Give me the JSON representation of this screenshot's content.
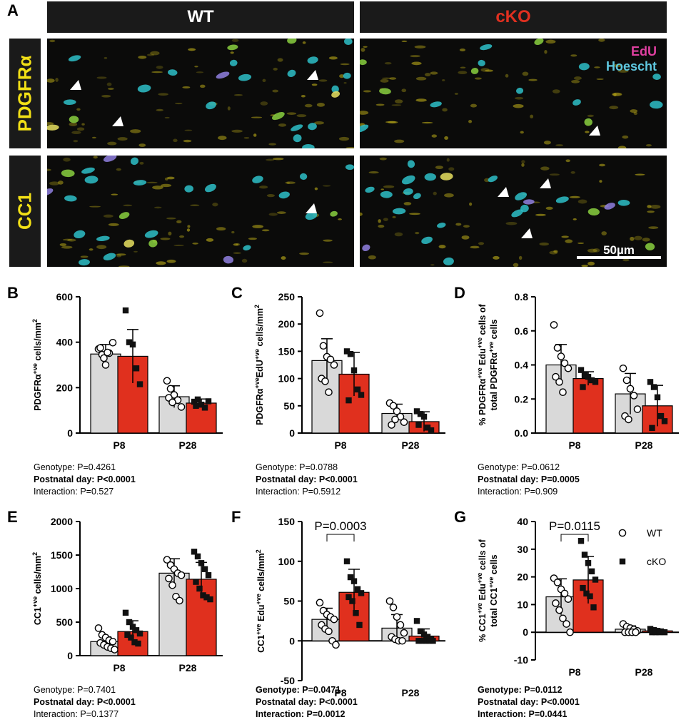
{
  "panel_a": {
    "letter": "A",
    "col_headers": [
      "WT",
      "cKO"
    ],
    "row_labels": [
      "PDGFRα",
      "CC1"
    ],
    "legend": {
      "edu": "EdU",
      "hoescht": "Hoescht"
    },
    "scale_bar": "50µm",
    "colors": {
      "edu": "#e040a0",
      "hoescht": "#5fc8e0",
      "marker": "#f2e016",
      "ko_header": "#e03020"
    }
  },
  "chart_data": [
    {
      "letter": "B",
      "type": "bar",
      "ylabel": "PDGFRα+ve cells/mm2",
      "ylabel_parts": [
        "PDGFRα",
        "+ve",
        " cells/mm",
        "2"
      ],
      "categories": [
        "P8",
        "P28"
      ],
      "ylim": [
        0,
        600
      ],
      "yticks": [
        "0",
        "200",
        "400",
        "600"
      ],
      "series": [
        {
          "name": "WT",
          "values": [
            348,
            160
          ],
          "err": [
            42,
            48
          ],
          "points": [
            [
              370,
              345,
              300,
              352,
              398,
              375,
              330,
              355
            ],
            [
              230,
              195,
              168,
              145,
              115,
              155,
              135
            ]
          ]
        },
        {
          "name": "cKO",
          "values": [
            338,
            132
          ],
          "err": [
            118,
            18
          ],
          "points": [
            [
              540,
              400,
              390,
              285,
              215
            ],
            [
              138,
              148,
              125,
              112,
              140,
              120
            ]
          ]
        }
      ],
      "stats": [
        {
          "text": "Genotype: P=0.4261",
          "bold": false
        },
        {
          "text": "Postnatal day: P<0.0001",
          "bold": true
        },
        {
          "text": "Interaction: P=0.527",
          "bold": false
        }
      ]
    },
    {
      "letter": "C",
      "type": "bar",
      "ylabel": "PDGFRα+veEdU+ve cells/mm2",
      "ylabel_parts": [
        "PDGFRα",
        "+ve",
        "EdU",
        "+ve",
        " cells/mm",
        "2"
      ],
      "categories": [
        "P8",
        "P28"
      ],
      "ylim": [
        0,
        250
      ],
      "yticks": [
        "0",
        "50",
        "100",
        "150",
        "200",
        "250"
      ],
      "series": [
        {
          "name": "WT",
          "values": [
            133,
            36
          ],
          "err": [
            40,
            17
          ],
          "points": [
            [
              220,
              160,
              140,
              135,
              125,
              100,
              95,
              75
            ],
            [
              55,
              50,
              40,
              30,
              20,
              15,
              25
            ]
          ]
        },
        {
          "name": "cKO",
          "values": [
            108,
            21
          ],
          "err": [
            40,
            18
          ],
          "points": [
            [
              150,
              145,
              115,
              80,
              70,
              60
            ],
            [
              40,
              35,
              30,
              10,
              5,
              15
            ]
          ]
        }
      ],
      "stats": [
        {
          "text": "Genotype: P=0.0788",
          "bold": false
        },
        {
          "text": "Postnatal day: P<0.0001",
          "bold": true
        },
        {
          "text": "Interaction: P=0.5912",
          "bold": false
        }
      ]
    },
    {
      "letter": "D",
      "type": "bar",
      "ylabel": "% PDGFRα+ve Edu+ve cells of total PDGFRα+ve cells",
      "ylabel_parts": [
        "% PDGFRα",
        "+ve",
        " Edu",
        "+ve",
        " cells of"
      ],
      "ylabel_line2_parts": [
        "total PDGFRα",
        "+ve",
        " cells"
      ],
      "categories": [
        "P8",
        "P28"
      ],
      "ylim": [
        0,
        0.8
      ],
      "yticks": [
        "0.0",
        "0.2",
        "0.4",
        "0.6",
        "0.8"
      ],
      "series": [
        {
          "name": "WT",
          "values": [
            0.4,
            0.23
          ],
          "err": [
            0.12,
            0.12
          ],
          "points": [
            [
              0.635,
              0.5,
              0.45,
              0.41,
              0.38,
              0.33,
              0.3,
              0.24
            ],
            [
              0.38,
              0.31,
              0.26,
              0.22,
              0.14,
              0.1,
              0.08
            ]
          ]
        },
        {
          "name": "cKO",
          "values": [
            0.32,
            0.16
          ],
          "err": [
            0.04,
            0.12
          ],
          "points": [
            [
              0.37,
              0.34,
              0.33,
              0.31,
              0.3,
              0.27
            ],
            [
              0.3,
              0.27,
              0.21,
              0.1,
              0.07,
              0.03
            ]
          ]
        }
      ],
      "stats": [
        {
          "text": "Genotype: P=0.0612",
          "bold": false
        },
        {
          "text": "Postnatal day: P=0.0005",
          "bold": true
        },
        {
          "text": "Interaction: P=0.909",
          "bold": false
        }
      ]
    },
    {
      "letter": "E",
      "type": "bar",
      "ylabel": "CC1+ve cells/mm2",
      "ylabel_parts": [
        "CC1",
        "+ve",
        " cells/mm",
        "2"
      ],
      "categories": [
        "P8",
        "P28"
      ],
      "ylim": [
        0,
        2000
      ],
      "yticks": [
        "0",
        "500",
        "1000",
        "1500",
        "2000"
      ],
      "series": [
        {
          "name": "WT",
          "values": [
            210,
            1230
          ],
          "err": [
            70,
            215
          ],
          "points": [
            [
              410,
              310,
              270,
              230,
              210,
              190,
              160,
              130,
              110,
              90
            ],
            [
              1430,
              1350,
              1290,
              1230,
              1200,
              1150,
              1050,
              880,
              820
            ]
          ]
        },
        {
          "name": "cKO",
          "values": [
            360,
            1140
          ],
          "err": [
            160,
            250
          ],
          "points": [
            [
              640,
              500,
              430,
              380,
              330,
              310,
              270,
              200,
              180
            ],
            [
              1550,
              1480,
              1380,
              1290,
              1200,
              1100,
              1000,
              900,
              870,
              840
            ]
          ]
        }
      ],
      "stats": [
        {
          "text": "Genotype: P=0.7401",
          "bold": false
        },
        {
          "text": "Postnatal day: P<0.0001",
          "bold": true
        },
        {
          "text": "Interaction: P=0.1377",
          "bold": false
        }
      ]
    },
    {
      "letter": "F",
      "type": "bar",
      "ylabel": "CC1+ve Edu+ve cells/mm2",
      "ylabel_parts": [
        "CC1",
        "+ve",
        " Edu",
        "+ve",
        " cells/mm",
        "2"
      ],
      "categories": [
        "P8",
        "P28"
      ],
      "ylim": [
        -50,
        150
      ],
      "yticks": [
        "-50",
        "0",
        "50",
        "100",
        "150"
      ],
      "significance": "P=0.0003",
      "series": [
        {
          "name": "WT",
          "values": [
            27,
            16
          ],
          "err": [
            14,
            17
          ],
          "points": [
            [
              48,
              38,
              33,
              30,
              27,
              20,
              15,
              12,
              0,
              -5
            ],
            [
              50,
              42,
              30,
              20,
              10,
              5,
              2,
              0,
              0
            ]
          ]
        },
        {
          "name": "cKO",
          "values": [
            61,
            6
          ],
          "err": [
            29,
            9
          ],
          "points": [
            [
              100,
              80,
              75,
              65,
              60,
              55,
              50,
              35,
              20
            ],
            [
              25,
              12,
              8,
              5,
              2,
              0,
              0,
              0,
              0,
              0
            ]
          ]
        }
      ],
      "stats": [
        {
          "text": "Genotype: P=0.0471",
          "bold": true
        },
        {
          "text": "Postnatal day: P<0.0001",
          "bold": true
        },
        {
          "text": "Interaction: P=0.0012",
          "bold": true
        }
      ]
    },
    {
      "letter": "G",
      "type": "bar",
      "ylabel": "% CC1+ve Edu+ve cells of total CC1+ve cells",
      "ylabel_parts": [
        "% CC1",
        "+ve",
        " Edu",
        "+ve",
        " cells of"
      ],
      "ylabel_line2_parts": [
        "total CC1",
        "+ve",
        " cells"
      ],
      "categories": [
        "P8",
        "P28"
      ],
      "ylim": [
        -10,
        40
      ],
      "yticks": [
        "-10",
        "0",
        "10",
        "20",
        "30",
        "40"
      ],
      "significance": "P=0.0115",
      "legend": [
        "WT",
        "cKO"
      ],
      "series": [
        {
          "name": "WT",
          "values": [
            12.8,
            1.1
          ],
          "err": [
            6.5,
            1.2
          ],
          "points": [
            [
              19.5,
              18,
              15.5,
              14,
              12,
              10.5,
              8,
              5,
              3,
              0
            ],
            [
              3,
              2,
              1.5,
              1,
              0.5,
              0,
              0,
              0,
              0
            ]
          ]
        },
        {
          "name": "cKO",
          "values": [
            18.9,
            0.5
          ],
          "err": [
            8.5,
            0.6
          ],
          "points": [
            [
              33,
              28,
              25,
              22,
              19,
              16,
              14,
              13,
              9
            ],
            [
              1.2,
              0.8,
              0.5,
              0.3,
              0,
              0,
              0,
              0
            ]
          ]
        }
      ],
      "stats": [
        {
          "text": "Genotype: P=0.0112",
          "bold": true
        },
        {
          "text": "Postnatal day: P<0.0001",
          "bold": true
        },
        {
          "text": "Interaction: P=0.0441",
          "bold": true
        }
      ]
    }
  ]
}
